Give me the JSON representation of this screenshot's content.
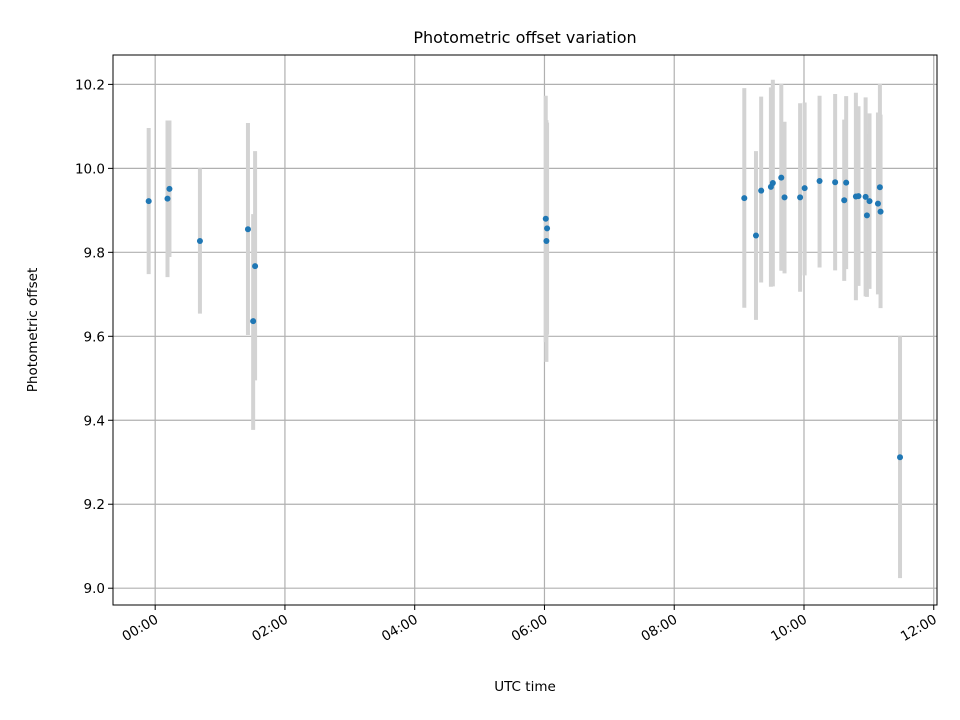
{
  "chart_data": {
    "type": "scatter",
    "title": "Photometric offset variation",
    "xlabel": "UTC time",
    "ylabel": "Photometric offset",
    "x_unit": "hours",
    "xlim": [
      -0.65,
      12.05
    ],
    "ylim": [
      8.96,
      10.27
    ],
    "x_ticks": [
      {
        "value": 0,
        "label": "00:00"
      },
      {
        "value": 2,
        "label": "02:00"
      },
      {
        "value": 4,
        "label": "04:00"
      },
      {
        "value": 6,
        "label": "06:00"
      },
      {
        "value": 8,
        "label": "08:00"
      },
      {
        "value": 10,
        "label": "10:00"
      },
      {
        "value": 12,
        "label": "12:00"
      }
    ],
    "y_ticks": [
      {
        "value": 9.0,
        "label": "9.0"
      },
      {
        "value": 9.2,
        "label": "9.2"
      },
      {
        "value": 9.4,
        "label": "9.4"
      },
      {
        "value": 9.6,
        "label": "9.6"
      },
      {
        "value": 9.8,
        "label": "9.8"
      },
      {
        "value": 10.0,
        "label": "10.0"
      },
      {
        "value": 10.2,
        "label": "10.2"
      }
    ],
    "grid": true,
    "marker_color": "#1f77b4",
    "errorbar_color": "#d3d3d3",
    "points": [
      {
        "x": -0.1,
        "y": 9.922,
        "ylow": 9.748,
        "yhigh": 10.096
      },
      {
        "x": 0.19,
        "y": 9.928,
        "ylow": 9.741,
        "yhigh": 10.114
      },
      {
        "x": 0.22,
        "y": 9.951,
        "ylow": 9.789,
        "yhigh": 10.114
      },
      {
        "x": 0.69,
        "y": 9.827,
        "ylow": 9.654,
        "yhigh": 10.0
      },
      {
        "x": 1.43,
        "y": 9.855,
        "ylow": 9.603,
        "yhigh": 10.108
      },
      {
        "x": 1.51,
        "y": 9.636,
        "ylow": 9.377,
        "yhigh": 9.891
      },
      {
        "x": 1.54,
        "y": 9.767,
        "ylow": 9.495,
        "yhigh": 10.041
      },
      {
        "x": 6.02,
        "y": 9.88,
        "ylow": 9.586,
        "yhigh": 10.173
      },
      {
        "x": 6.04,
        "y": 9.857,
        "ylow": 9.604,
        "yhigh": 10.109
      },
      {
        "x": 6.03,
        "y": 9.827,
        "ylow": 9.539,
        "yhigh": 10.115
      },
      {
        "x": 9.08,
        "y": 9.929,
        "ylow": 9.668,
        "yhigh": 10.191
      },
      {
        "x": 9.26,
        "y": 9.84,
        "ylow": 9.639,
        "yhigh": 10.041
      },
      {
        "x": 9.34,
        "y": 9.947,
        "ylow": 9.728,
        "yhigh": 10.171
      },
      {
        "x": 9.49,
        "y": 9.956,
        "ylow": 9.718,
        "yhigh": 10.193
      },
      {
        "x": 9.52,
        "y": 9.965,
        "ylow": 9.719,
        "yhigh": 10.211
      },
      {
        "x": 9.65,
        "y": 9.978,
        "ylow": 9.756,
        "yhigh": 10.201
      },
      {
        "x": 9.7,
        "y": 9.931,
        "ylow": 9.75,
        "yhigh": 10.111
      },
      {
        "x": 9.94,
        "y": 9.931,
        "ylow": 9.706,
        "yhigh": 10.155
      },
      {
        "x": 10.01,
        "y": 9.953,
        "ylow": 9.745,
        "yhigh": 10.157
      },
      {
        "x": 10.24,
        "y": 9.97,
        "ylow": 9.764,
        "yhigh": 10.173
      },
      {
        "x": 10.48,
        "y": 9.967,
        "ylow": 9.757,
        "yhigh": 10.177
      },
      {
        "x": 10.62,
        "y": 9.924,
        "ylow": 9.732,
        "yhigh": 10.116
      },
      {
        "x": 10.65,
        "y": 9.966,
        "ylow": 9.76,
        "yhigh": 10.172
      },
      {
        "x": 10.8,
        "y": 9.933,
        "ylow": 9.686,
        "yhigh": 10.18
      },
      {
        "x": 10.84,
        "y": 9.934,
        "ylow": 9.72,
        "yhigh": 10.148
      },
      {
        "x": 10.95,
        "y": 9.932,
        "ylow": 9.695,
        "yhigh": 10.169
      },
      {
        "x": 10.97,
        "y": 9.888,
        "ylow": 9.694,
        "yhigh": 10.082
      },
      {
        "x": 11.01,
        "y": 9.922,
        "ylow": 9.713,
        "yhigh": 10.131
      },
      {
        "x": 11.14,
        "y": 9.916,
        "ylow": 9.7,
        "yhigh": 10.133
      },
      {
        "x": 11.17,
        "y": 9.955,
        "ylow": 9.712,
        "yhigh": 10.201
      },
      {
        "x": 11.18,
        "y": 9.897,
        "ylow": 9.667,
        "yhigh": 10.128
      },
      {
        "x": 11.48,
        "y": 9.312,
        "ylow": 9.024,
        "yhigh": 9.6
      }
    ]
  }
}
